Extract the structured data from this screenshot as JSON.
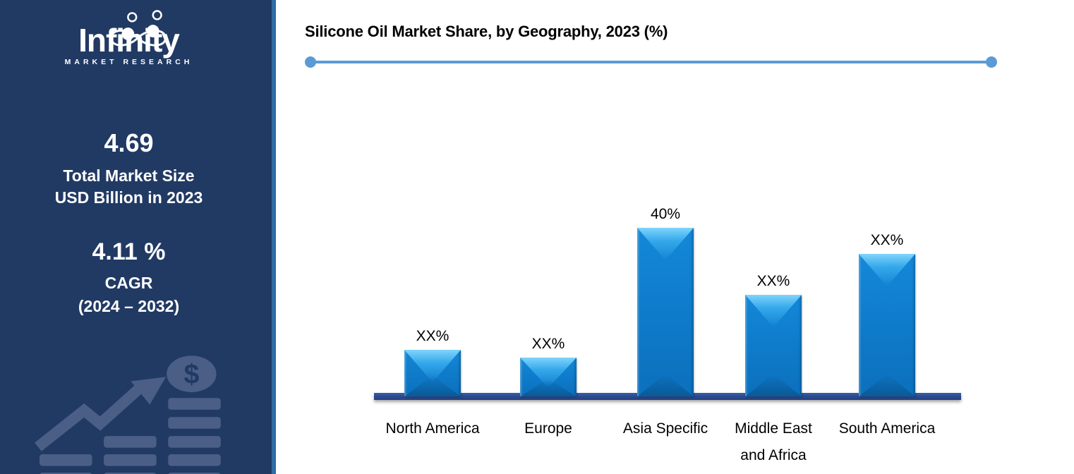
{
  "sidebar": {
    "logo_text": "Infinity",
    "logo_tagline": "MARKET RESEARCH",
    "market_size_value": "4.69",
    "market_size_line1": "Total Market Size",
    "market_size_line2": "USD Billion in 2023",
    "cagr_value": "4.11 %",
    "cagr_label": "CAGR",
    "cagr_period": "(2024 – 2032)",
    "watermark_dollar": "$"
  },
  "chart": {
    "title": "Silicone Oil Market Share, by Geography, 2023 (%)"
  },
  "chart_data": {
    "type": "bar",
    "title": "Silicone Oil Market Share, by Geography, 2023 (%)",
    "categories": [
      "North America",
      "Europe",
      "Asia Specific",
      "Middle East and Africa",
      "South America"
    ],
    "category_lines": [
      [
        "North America"
      ],
      [
        "Europe"
      ],
      [
        "Asia Specific"
      ],
      [
        "Middle East",
        "and Africa"
      ],
      [
        "South America"
      ]
    ],
    "values": [
      10.4,
      8.5,
      40,
      23.8,
      33.7
    ],
    "value_labels": [
      "XX%",
      "XX%",
      "40%",
      "XX%",
      "XX%"
    ],
    "unit": "%",
    "xlabel": "",
    "ylabel": "",
    "ylim": [
      0,
      45
    ],
    "gridlines": false,
    "legend": false,
    "value_label_position": "above"
  },
  "colors": {
    "sidebar_bg": "#213A64",
    "sidebar_stripe": "#2E6CA3",
    "sidebar_text": "#FFFFFF",
    "divider": "#5B9BD5",
    "bar": "#0E7AC9",
    "bar_top_highlight": "#7FD4FB",
    "baseline": "#2B4C92",
    "watermark": "#4A5E86",
    "title_text": "#000000"
  }
}
